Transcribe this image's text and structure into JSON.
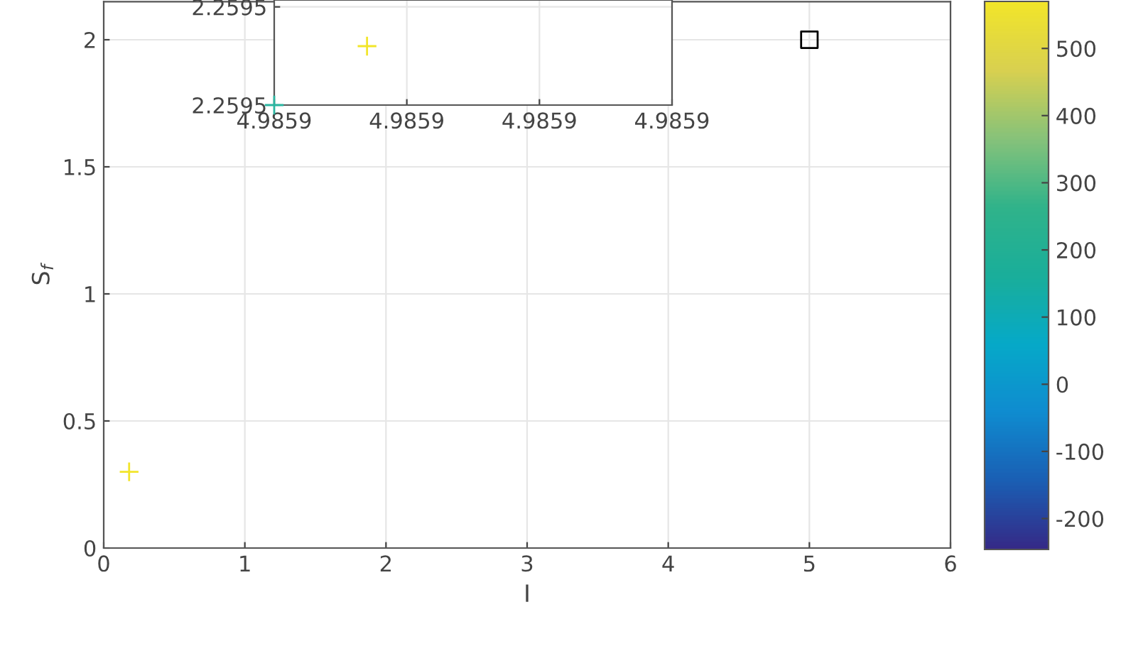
{
  "chart_data": [
    {
      "type": "scatter",
      "xlabel": "I",
      "ylabel": "S$_{f}$",
      "xlim": [
        0,
        6
      ],
      "ylim": [
        0,
        2.15
      ],
      "xticks": [
        0,
        1,
        2,
        3,
        4,
        5,
        6
      ],
      "yticks": [
        0,
        0.5,
        1,
        1.5,
        2
      ],
      "grid": true,
      "clim": [
        -246,
        570
      ],
      "cticks": [
        -200,
        -100,
        0,
        100,
        200,
        300,
        400,
        500
      ],
      "series": [
        {
          "marker": "cross",
          "x": [
            0.18
          ],
          "values": [
            0.3
          ],
          "cvalues": [
            570
          ]
        },
        {
          "marker": "square",
          "color": "#000000",
          "x": [
            5
          ],
          "values": [
            2
          ]
        }
      ]
    },
    {
      "type": "scatter",
      "xlim": [
        4.9859,
        4.98593
      ],
      "ylim": [
        2.2595,
        2.2595107
      ],
      "xticks": [
        {
          "value": 4.9859,
          "label": "4.9859"
        },
        {
          "value": 4.98591,
          "label": "4.9859"
        },
        {
          "value": 4.98592,
          "label": "4.9859"
        },
        {
          "value": 4.98593,
          "label": "4.9859"
        }
      ],
      "yticks": [
        {
          "value": 2.2595,
          "label": "2.2595"
        },
        {
          "value": 2.25951,
          "label": "2.2595"
        }
      ],
      "grid": true,
      "series": [
        {
          "marker": "cross",
          "x": [
            4.9859,
            4.985907
          ],
          "values": [
            2.2595,
            2.259506
          ],
          "colors": [
            "#2ab5a0",
            "#f2e52a"
          ]
        }
      ]
    }
  ]
}
